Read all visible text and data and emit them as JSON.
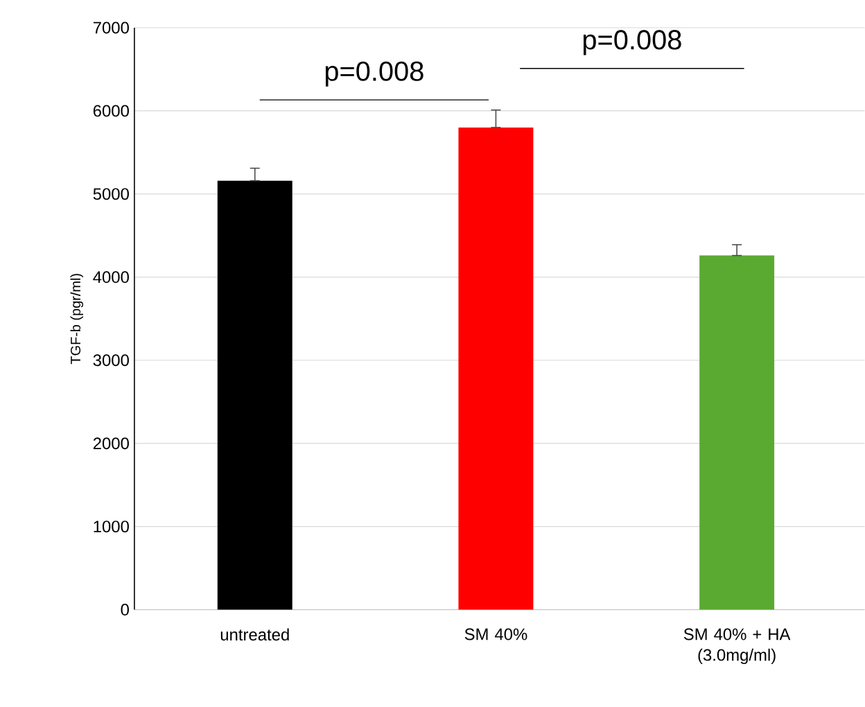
{
  "chart_data": {
    "type": "bar",
    "ylabel": "TGF-b (pgr/ml)",
    "categories": [
      "untreated",
      "SM 40%",
      "SM 40% + HA (3.0mg/ml)"
    ],
    "values": [
      5160,
      5800,
      4260
    ],
    "colors": [
      "#000000",
      "#ff0000",
      "#5aaa32"
    ],
    "errors": [
      [
        5160,
        5310
      ],
      [
        5800,
        6010
      ],
      [
        4260,
        4390
      ]
    ],
    "ylim": [
      0,
      7000
    ],
    "yticks": [
      0,
      1000,
      2000,
      3000,
      4000,
      5000,
      6000,
      7000
    ],
    "grid": "y",
    "annotations": [
      "p=0.008",
      "p=0.008"
    ]
  }
}
